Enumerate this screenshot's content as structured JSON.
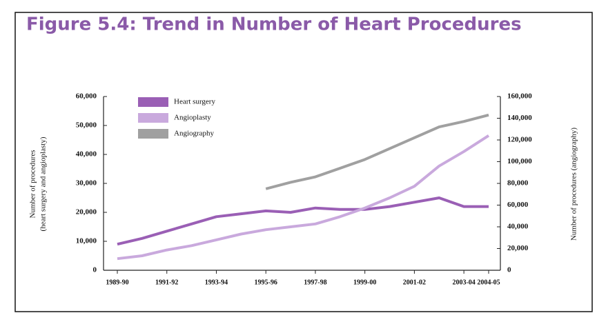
{
  "chart_data": {
    "type": "line",
    "title": "Figure 5.4: Trend in Number of Heart Procedures",
    "ylabel": [
      "Number of procedures",
      "(heart surgery and angioplasty)"
    ],
    "y2label": "Number of procedures (angiography)",
    "categories": [
      "1989-90",
      null,
      "1991-92",
      null,
      "1993-94",
      null,
      "1995-96",
      null,
      "1997-98",
      null,
      "1999-00",
      null,
      "2001-02",
      null,
      "2003-04",
      "2004-05"
    ],
    "series": [
      {
        "name": "Heart surgery",
        "color": "#9a5fb5",
        "values": [
          9000,
          11000,
          13500,
          16000,
          18500,
          19500,
          20500,
          20000,
          21500,
          21000,
          21000,
          22000,
          23500,
          25000,
          22000,
          22000
        ]
      },
      {
        "name": "Angioplasty",
        "color": "#c9a9dd",
        "values": [
          4000,
          5000,
          7000,
          8500,
          10500,
          12500,
          14000,
          15000,
          16000,
          18500,
          21500,
          25000,
          29000,
          36000,
          41000,
          46500
        ]
      },
      {
        "name": "Angiography",
        "color": "#a0a0a0",
        "axis": "y2",
        "values": [
          null,
          null,
          null,
          null,
          null,
          null,
          75000,
          81000,
          86000,
          94000,
          102000,
          112000,
          122000,
          132000,
          137000,
          143000
        ]
      }
    ],
    "ylim": [
      0,
      60000
    ],
    "yticks": [
      0,
      {
        "value": 10000,
        "label": "10,000"
      },
      {
        "value": 20000,
        "label": "20,000"
      },
      {
        "value": 30000,
        "label": "30,000"
      },
      {
        "value": 40000,
        "label": "40,000"
      },
      {
        "value": 50000,
        "label": "50,000"
      },
      {
        "value": 60000,
        "label": "60,000"
      }
    ],
    "y2lim": [
      0,
      160000
    ],
    "y2ticks": [
      0,
      {
        "value": 20000,
        "label": "20,000"
      },
      {
        "value": 40000,
        "label": "40,000"
      },
      {
        "value": 60000,
        "label": "60,000"
      },
      {
        "value": 80000,
        "label": "80,000"
      },
      {
        "value": 100000,
        "label": "100,000"
      },
      {
        "value": 120000,
        "label": "120,000"
      },
      {
        "value": 140000,
        "label": "140,000"
      },
      {
        "value": 160000,
        "label": "160,000"
      }
    ],
    "legend": "top-left"
  }
}
